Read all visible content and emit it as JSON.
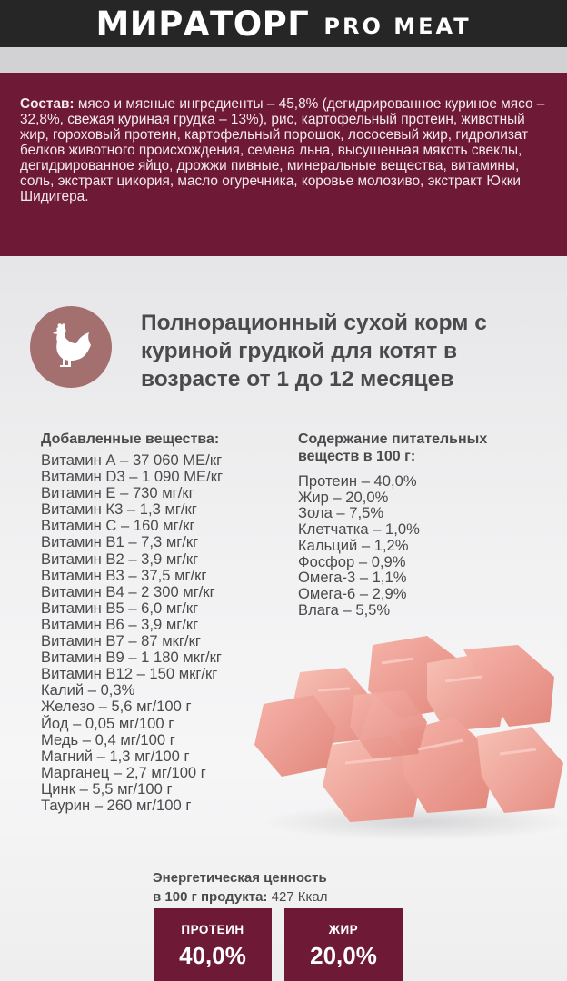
{
  "header": {
    "brand": "МИРАТОРГ",
    "sub_brand": "PRO MEAT"
  },
  "composition": {
    "label": "Состав:",
    "text": " мясо и мясные ингредиенты – 45,8% (дегидрированное куриное мясо – 32,8%, свежая куриная грудка – 13%), рис, картофельный протеин, животный жир, гороховый протеин, картофельный порошок, лососевый жир, гидролизат белков животного происхождения, семена льна, высушенная мякоть свеклы, дегидрированное яйцо, дрожжи пивные, минеральные вещества, витамины, соль, экстракт цикория, масло огуречника, коровье молозиво, экстракт Юкки Шидигера."
  },
  "badge_icon": "chicken-icon",
  "title": "Полнорационный сухой корм с куриной грудкой для котят в возрасте от 1 до 12 месяцев",
  "added": {
    "heading": "Добавленные вещества:",
    "items": [
      "Витамин А – 37 060 МЕ/кг",
      "Витамин D3 – 1 090 МЕ/кг",
      "Витамин Е – 730 мг/кг",
      "Витамин К3 – 1,3 мг/кг",
      "Витамин С – 160 мг/кг",
      "Витамин В1 – 7,3 мг/кг",
      "Витамин В2 – 3,9 мг/кг",
      "Витамин В3 – 37,5 мг/кг",
      "Витамин В4 – 2 300 мг/кг",
      "Витамин В5 – 6,0 мг/кг",
      "Витамин В6 – 3,9 мг/кг",
      "Витамин В7 – 87 мкг/кг",
      "Витамин В9 – 1 180 мкг/кг",
      "Витамин В12 – 150 мкг/кг",
      "Калий – 0,3%",
      "Железо – 5,6 мг/100 г",
      "Йод – 0,05 мг/100 г",
      "Медь – 0,4 мг/100 г",
      "Магний – 1,3 мг/100 г",
      "Марганец – 2,7 мг/100 г",
      "Цинк – 5,5 мг/100 г",
      "Таурин – 260 мг/100 г"
    ]
  },
  "nutrients": {
    "heading_line1": "Содержание питательных",
    "heading_line2": "веществ в 100 г:",
    "items": [
      "Протеин – 40,0%",
      "Жир – 20,0%",
      "Зола – 7,5%",
      "Клетчатка – 1,0%",
      "Кальций – 1,2%",
      "Фосфор – 0,9%",
      "Омега-3 – 1,1%",
      "Омега-6 – 2,9%",
      "Влага – 5,5%"
    ]
  },
  "energy": {
    "label_line1": "Энергетическая ценность",
    "label_line2": "в 100 г продукта:",
    "value": " 427 Ккал"
  },
  "stats": [
    {
      "label": "ПРОТЕИН",
      "value": "40,0%"
    },
    {
      "label": "ЖИР",
      "value": "20,0%"
    }
  ],
  "colors": {
    "brand_burgundy": "#6e1a37",
    "badge": "#a3706f",
    "header": "#262626"
  }
}
